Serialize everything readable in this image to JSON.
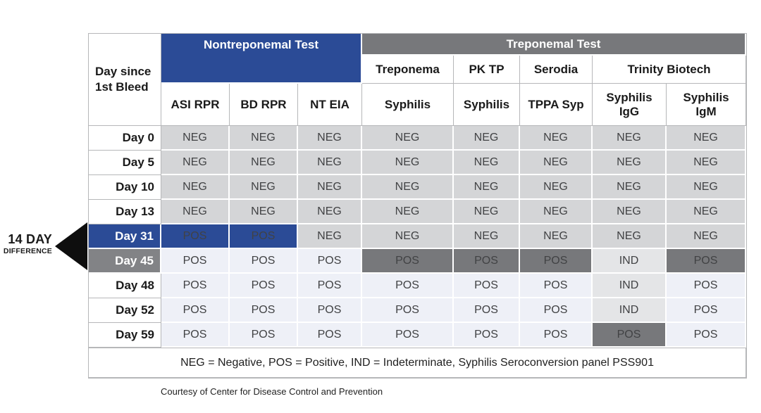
{
  "chart_data": {
    "type": "table",
    "title": "Syphilis Seroconversion panel PSS901 test results",
    "corner_header": {
      "line1": "Day since",
      "line2": "1st Bleed"
    },
    "group_headers": {
      "nontreponemal": "Nontreponemal Test",
      "treponemal": "Treponemal Test"
    },
    "vendor_headers": [
      "Treponema",
      "PK TP",
      "Serodia",
      "Trinity Biotech"
    ],
    "test_headers": [
      "ASI RPR",
      "BD RPR",
      "NT EIA",
      "Syphilis",
      "Syphilis",
      "TPPA Syp",
      "Syphilis IgG",
      "Syphilis IgM"
    ],
    "rows": [
      {
        "day": "Day 0",
        "day_style": "plain",
        "cells": [
          {
            "v": "NEG",
            "s": "neg"
          },
          {
            "v": "NEG",
            "s": "neg"
          },
          {
            "v": "NEG",
            "s": "neg"
          },
          {
            "v": "NEG",
            "s": "neg"
          },
          {
            "v": "NEG",
            "s": "neg"
          },
          {
            "v": "NEG",
            "s": "neg"
          },
          {
            "v": "NEG",
            "s": "neg"
          },
          {
            "v": "NEG",
            "s": "neg"
          }
        ]
      },
      {
        "day": "Day 5",
        "day_style": "plain",
        "cells": [
          {
            "v": "NEG",
            "s": "neg"
          },
          {
            "v": "NEG",
            "s": "neg"
          },
          {
            "v": "NEG",
            "s": "neg"
          },
          {
            "v": "NEG",
            "s": "neg"
          },
          {
            "v": "NEG",
            "s": "neg"
          },
          {
            "v": "NEG",
            "s": "neg"
          },
          {
            "v": "NEG",
            "s": "neg"
          },
          {
            "v": "NEG",
            "s": "neg"
          }
        ]
      },
      {
        "day": "Day 10",
        "day_style": "plain",
        "cells": [
          {
            "v": "NEG",
            "s": "neg"
          },
          {
            "v": "NEG",
            "s": "neg"
          },
          {
            "v": "NEG",
            "s": "neg"
          },
          {
            "v": "NEG",
            "s": "neg"
          },
          {
            "v": "NEG",
            "s": "neg"
          },
          {
            "v": "NEG",
            "s": "neg"
          },
          {
            "v": "NEG",
            "s": "neg"
          },
          {
            "v": "NEG",
            "s": "neg"
          }
        ]
      },
      {
        "day": "Day 13",
        "day_style": "plain",
        "cells": [
          {
            "v": "NEG",
            "s": "neg"
          },
          {
            "v": "NEG",
            "s": "neg"
          },
          {
            "v": "NEG",
            "s": "neg"
          },
          {
            "v": "NEG",
            "s": "neg"
          },
          {
            "v": "NEG",
            "s": "neg"
          },
          {
            "v": "NEG",
            "s": "neg"
          },
          {
            "v": "NEG",
            "s": "neg"
          },
          {
            "v": "NEG",
            "s": "neg"
          }
        ]
      },
      {
        "day": "Day 31",
        "day_style": "blue",
        "cells": [
          {
            "v": "POS",
            "s": "pos-blue"
          },
          {
            "v": "POS",
            "s": "pos-blue"
          },
          {
            "v": "NEG",
            "s": "neg"
          },
          {
            "v": "NEG",
            "s": "neg"
          },
          {
            "v": "NEG",
            "s": "neg"
          },
          {
            "v": "NEG",
            "s": "neg"
          },
          {
            "v": "NEG",
            "s": "neg"
          },
          {
            "v": "NEG",
            "s": "neg"
          }
        ]
      },
      {
        "day": "Day 45",
        "day_style": "gray",
        "cells": [
          {
            "v": "POS",
            "s": "pos"
          },
          {
            "v": "POS",
            "s": "pos"
          },
          {
            "v": "POS",
            "s": "pos"
          },
          {
            "v": "POS",
            "s": "pos-dark"
          },
          {
            "v": "POS",
            "s": "pos-dark"
          },
          {
            "v": "POS",
            "s": "pos-dark"
          },
          {
            "v": "IND",
            "s": "ind"
          },
          {
            "v": "POS",
            "s": "pos-dark"
          }
        ]
      },
      {
        "day": "Day 48",
        "day_style": "plain",
        "cells": [
          {
            "v": "POS",
            "s": "pos"
          },
          {
            "v": "POS",
            "s": "pos"
          },
          {
            "v": "POS",
            "s": "pos"
          },
          {
            "v": "POS",
            "s": "pos"
          },
          {
            "v": "POS",
            "s": "pos"
          },
          {
            "v": "POS",
            "s": "pos"
          },
          {
            "v": "IND",
            "s": "ind"
          },
          {
            "v": "POS",
            "s": "pos"
          }
        ]
      },
      {
        "day": "Day 52",
        "day_style": "plain",
        "cells": [
          {
            "v": "POS",
            "s": "pos"
          },
          {
            "v": "POS",
            "s": "pos"
          },
          {
            "v": "POS",
            "s": "pos"
          },
          {
            "v": "POS",
            "s": "pos"
          },
          {
            "v": "POS",
            "s": "pos"
          },
          {
            "v": "POS",
            "s": "pos"
          },
          {
            "v": "IND",
            "s": "ind"
          },
          {
            "v": "POS",
            "s": "pos"
          }
        ]
      },
      {
        "day": "Day 59",
        "day_style": "plain",
        "cells": [
          {
            "v": "POS",
            "s": "pos"
          },
          {
            "v": "POS",
            "s": "pos"
          },
          {
            "v": "POS",
            "s": "pos"
          },
          {
            "v": "POS",
            "s": "pos"
          },
          {
            "v": "POS",
            "s": "pos"
          },
          {
            "v": "POS",
            "s": "pos"
          },
          {
            "v": "POS",
            "s": "pos-dark"
          },
          {
            "v": "POS",
            "s": "pos"
          }
        ]
      }
    ],
    "legend": "NEG = Negative, POS = Positive, IND = Indeterminate, Syphilis Seroconversion panel PSS901"
  },
  "annotation": {
    "line1": "14 DAY",
    "line2": "DIFFERENCE",
    "points_between": [
      "Day 31",
      "Day 45"
    ]
  },
  "caption": "Courtesy of Center for Disease Control and Prevention",
  "colors": {
    "blue": "#2b4b96",
    "band": "#77787b",
    "dark": "#77787b",
    "daygray": "#828386",
    "neg": "#d4d5d7",
    "pos": "#eef0f7",
    "ind": "#e4e5e7",
    "border": "#b6b7b9"
  }
}
